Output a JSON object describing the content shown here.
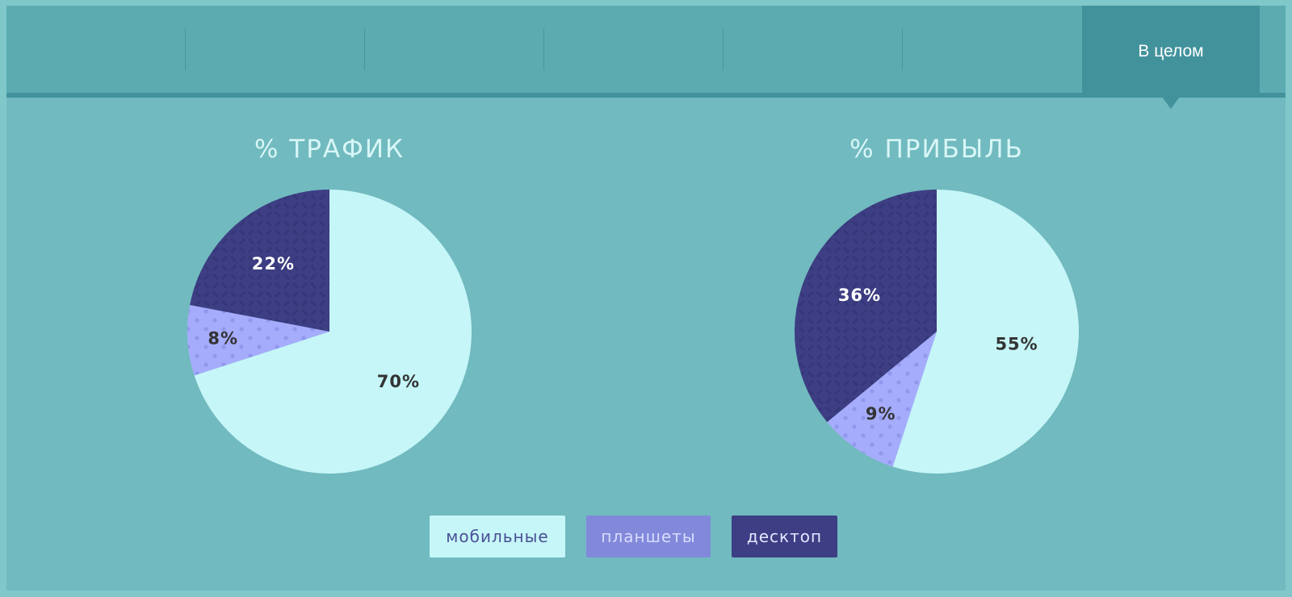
{
  "tabs": {
    "items": [
      "",
      "",
      "",
      "",
      "",
      ""
    ],
    "active_label": "В целом"
  },
  "colors": {
    "mobile": "#c6f6f8",
    "tablets": "#a6acfc",
    "desktop": "#3d3e84",
    "label_dark": "#333333",
    "label_light": "#ffffff"
  },
  "legend": {
    "mobile": "мобильные",
    "tablets": "планшеты",
    "desktop": "десктоп"
  },
  "chart_data": [
    {
      "type": "pie",
      "title": "% ТРАФИК",
      "slices": [
        {
          "name": "мобильные",
          "value": 70,
          "label": "70%"
        },
        {
          "name": "планшеты",
          "value": 8,
          "label": "8%"
        },
        {
          "name": "десктоп",
          "value": 22,
          "label": "22%"
        }
      ]
    },
    {
      "type": "pie",
      "title": "% ПРИБЫЛЬ",
      "slices": [
        {
          "name": "мобильные",
          "value": 55,
          "label": "55%"
        },
        {
          "name": "планшеты",
          "value": 9,
          "label": "9%"
        },
        {
          "name": "десктоп",
          "value": 36,
          "label": "36%"
        }
      ]
    }
  ]
}
